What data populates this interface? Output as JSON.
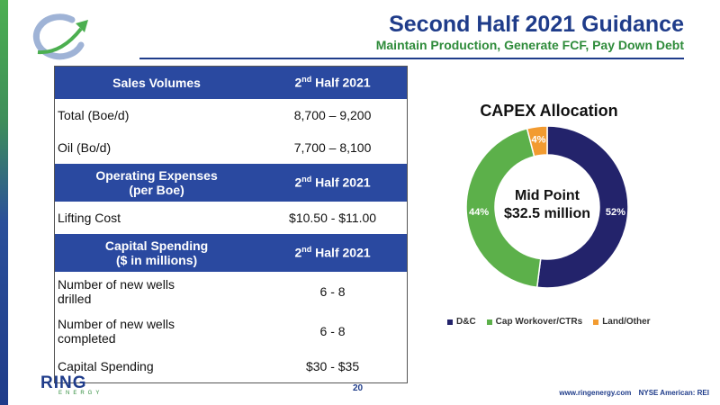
{
  "header": {
    "title": "Second Half 2021 Guidance",
    "subtitle": "Maintain Production, Generate FCF, Pay Down Debt"
  },
  "table": {
    "sales": {
      "header": "Sales Volumes",
      "col": "Half 2021",
      "col_prefix": "2",
      "col_sup": "nd"
    },
    "sales_rows": [
      {
        "label": "Total (Boe/d)",
        "value": "8,700 – 9,200"
      },
      {
        "label": "Oil (Bo/d)",
        "value": "7,700 – 8,100"
      }
    ],
    "opex": {
      "header_line1": "Operating Expenses",
      "header_line2": "(per Boe)",
      "col": "Half 2021",
      "col_prefix": "2",
      "col_sup": "nd"
    },
    "opex_rows": [
      {
        "label": "Lifting Cost",
        "value": "$10.50 - $11.00"
      }
    ],
    "capex": {
      "header_line1": "Capital Spending",
      "header_line2": "($ in millions)",
      "col": "Half 2021",
      "col_prefix": "2",
      "col_sup": "nd"
    },
    "capex_rows": [
      {
        "label_line1": "Number of new wells",
        "label_line2": "drilled",
        "value": "6 - 8"
      },
      {
        "label_line1": "Number of new wells",
        "label_line2": "completed",
        "value": "6 - 8"
      },
      {
        "label": "Capital Spending",
        "value": "$30 - $35"
      }
    ]
  },
  "chart_data": {
    "type": "pie",
    "title": "CAPEX Allocation",
    "center_line1": "Mid Point",
    "center_line2": "$32.5  million",
    "categories": [
      "D&C",
      "Cap Workover/CTRs",
      "Land/Other"
    ],
    "values": [
      52,
      44,
      4
    ],
    "labels": [
      "52%",
      "44%",
      "4%"
    ],
    "colors": [
      "#23236b",
      "#5cb04a",
      "#f29b30"
    ],
    "legend_position": "bottom"
  },
  "footer": {
    "logo_ring": "RING",
    "logo_energy": "ENERGY",
    "page_number": "20",
    "website": "www.ringenergy.com",
    "exchange": "NYSE American: REI"
  }
}
